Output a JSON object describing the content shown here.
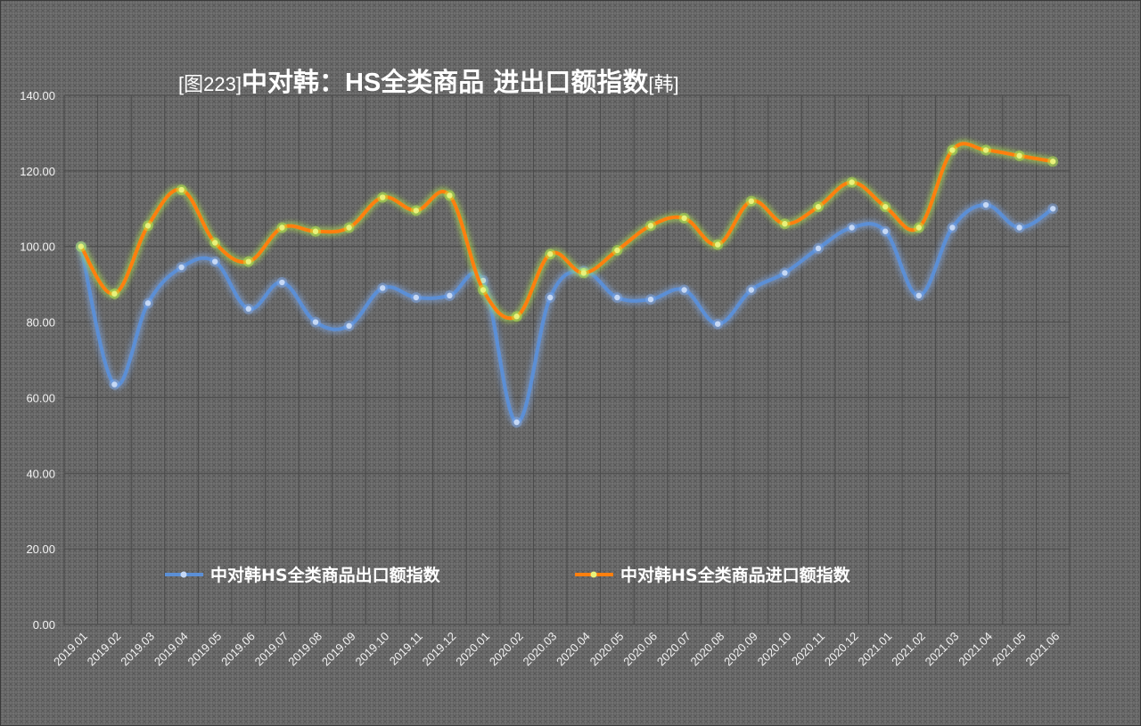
{
  "chart_data": {
    "type": "line",
    "title": {
      "prefix": "[图223]",
      "main": "中对韩：",
      "bold": "HS",
      "rest": "全类商品 进出口额指数",
      "suffix": "[韩]"
    },
    "categories": [
      "2019.01",
      "2019.02",
      "2019.03",
      "2019.04",
      "2019.05",
      "2019.06",
      "2019.07",
      "2019.08",
      "2019.09",
      "2019.10",
      "2019.11",
      "2019.12",
      "2020.01",
      "2020.02",
      "2020.03",
      "2020.04",
      "2020.05",
      "2020.06",
      "2020.07",
      "2020.08",
      "2020.09",
      "2020.10",
      "2020.11",
      "2020.12",
      "2021.01",
      "2021.02",
      "2021.03",
      "2021.04",
      "2021.05",
      "2021.06"
    ],
    "yticks": [
      "0.00",
      "20.00",
      "40.00",
      "60.00",
      "80.00",
      "100.00",
      "120.00",
      "140.00"
    ],
    "ylim": [
      0,
      140
    ],
    "series": [
      {
        "name": "中对韩HS全类商品出口额指数",
        "color": "#5b8fd6",
        "values": [
          100.0,
          63.5,
          85.0,
          94.5,
          96.0,
          83.5,
          90.5,
          80.0,
          79.0,
          89.0,
          86.5,
          87.0,
          91.0,
          53.5,
          86.5,
          93.5,
          86.5,
          86.0,
          88.5,
          79.5,
          88.5,
          93.0,
          99.5,
          105.0,
          104.0,
          87.0,
          105.0,
          111.0,
          105.0,
          110.0
        ]
      },
      {
        "name": "中对韩HS全类商品进口额指数",
        "color": "#ff7f0e",
        "values": [
          100.0,
          87.5,
          105.5,
          115.0,
          101.0,
          96.0,
          105.0,
          104.0,
          105.0,
          113.0,
          109.5,
          113.5,
          88.5,
          81.5,
          98.0,
          93.0,
          99.0,
          105.5,
          107.5,
          100.5,
          112.0,
          106.0,
          110.5,
          117.0,
          110.5,
          105.0,
          125.5,
          125.5,
          124.0,
          122.5
        ]
      }
    ],
    "grid": true,
    "legend": "bottom-center"
  }
}
